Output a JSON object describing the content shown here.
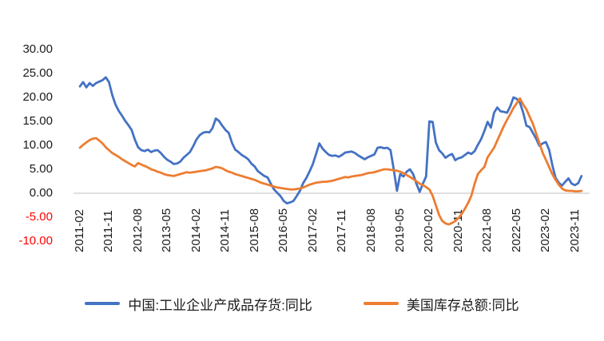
{
  "chart_data": {
    "type": "line",
    "title": "",
    "x_start": "2011-02",
    "x_frequency": "monthly",
    "x_tick_labels": [
      "2011-02",
      "2011-11",
      "2012-08",
      "2013-05",
      "2014-02",
      "2014-11",
      "2015-08",
      "2016-05",
      "2017-02",
      "2017-11",
      "2018-08",
      "2019-05",
      "2020-02",
      "2020-11",
      "2021-08",
      "2022-05",
      "2023-02",
      "2023-11"
    ],
    "x_tick_indices": [
      0,
      9,
      18,
      27,
      36,
      45,
      54,
      63,
      72,
      81,
      90,
      99,
      108,
      117,
      126,
      135,
      144,
      153
    ],
    "y_ticks": [
      30,
      25,
      20,
      15,
      10,
      5,
      0,
      -5,
      -10
    ],
    "y_tick_labels": [
      "30.00",
      "25.00",
      "20.00",
      "15.00",
      "10.00",
      "5.00",
      "0.00",
      "-5.00",
      "-10.00"
    ],
    "ylim": [
      -10,
      30
    ],
    "grid": "off",
    "axis_line_color": "#bfbfbf",
    "negative_tick_color": "#ff0000",
    "legend_position": "bottom",
    "series": [
      {
        "name": "中国:工业企业产成品存货:同比",
        "color": "#4472C4",
        "values": [
          22.3,
          23.2,
          22.1,
          23.0,
          22.4,
          23.0,
          23.3,
          23.6,
          24.2,
          23.2,
          20.5,
          18.5,
          17.2,
          16.2,
          15.1,
          14.2,
          13.2,
          11.2,
          9.6,
          9.0,
          8.8,
          9.1,
          8.6,
          8.9,
          9.0,
          8.4,
          7.6,
          7.0,
          6.6,
          6.1,
          6.2,
          6.6,
          7.4,
          8.0,
          8.6,
          9.8,
          11.2,
          12.1,
          12.6,
          12.8,
          12.7,
          13.6,
          15.6,
          15.1,
          14.1,
          13.2,
          12.6,
          10.5,
          9.1,
          8.6,
          8.0,
          7.6,
          7.1,
          6.2,
          5.6,
          4.6,
          4.1,
          3.6,
          3.3,
          2.0,
          0.8,
          0.1,
          -0.6,
          -1.6,
          -2.1,
          -1.9,
          -1.6,
          -0.6,
          0.5,
          2.1,
          3.2,
          4.6,
          6.1,
          8.2,
          10.4,
          9.3,
          8.6,
          8.0,
          7.8,
          7.9,
          7.6,
          8.0,
          8.5,
          8.6,
          8.7,
          8.4,
          7.9,
          7.5,
          7.1,
          7.5,
          7.8,
          8.1,
          9.5,
          9.6,
          9.4,
          9.5,
          9.0,
          5.0,
          0.5,
          4.0,
          3.5,
          4.5,
          5.0,
          4.0,
          2.0,
          0.3,
          2.0,
          3.5,
          15.0,
          14.9,
          10.6,
          9.0,
          8.3,
          7.4,
          7.9,
          8.2,
          6.9,
          7.3,
          7.5,
          8.0,
          8.5,
          8.2,
          8.8,
          10.1,
          11.3,
          13.0,
          14.9,
          13.7,
          16.8,
          17.9,
          17.1,
          17.0,
          16.8,
          18.1,
          20.0,
          19.7,
          18.9,
          16.8,
          14.1,
          13.8,
          12.6,
          11.4,
          9.9,
          10.4,
          10.7,
          9.1,
          5.9,
          3.2,
          2.2,
          1.6,
          2.4,
          3.1,
          2.0,
          1.7,
          2.1,
          3.6
        ]
      },
      {
        "name": "美国库存总额:同比",
        "color": "#ED7D31",
        "values": [
          9.5,
          10.1,
          10.6,
          11.1,
          11.4,
          11.5,
          11.0,
          10.4,
          9.6,
          9.0,
          8.4,
          8.0,
          7.6,
          7.1,
          6.7,
          6.3,
          5.9,
          5.6,
          6.3,
          6.0,
          5.7,
          5.4,
          5.0,
          4.8,
          4.5,
          4.3,
          4.0,
          3.8,
          3.7,
          3.6,
          3.8,
          4.0,
          4.2,
          4.4,
          4.3,
          4.4,
          4.5,
          4.6,
          4.7,
          4.8,
          5.0,
          5.2,
          5.5,
          5.4,
          5.2,
          4.8,
          4.5,
          4.3,
          4.0,
          3.8,
          3.6,
          3.4,
          3.2,
          3.0,
          2.8,
          2.5,
          2.2,
          2.0,
          1.8,
          1.6,
          1.4,
          1.2,
          1.1,
          1.0,
          0.9,
          0.8,
          0.8,
          0.9,
          1.0,
          1.2,
          1.5,
          1.8,
          2.0,
          2.2,
          2.3,
          2.4,
          2.4,
          2.5,
          2.6,
          2.8,
          3.0,
          3.2,
          3.4,
          3.3,
          3.5,
          3.6,
          3.7,
          3.8,
          4.0,
          4.2,
          4.3,
          4.4,
          4.6,
          4.8,
          5.0,
          5.0,
          4.9,
          4.8,
          4.7,
          4.5,
          4.2,
          3.8,
          3.4,
          3.0,
          2.5,
          2.0,
          1.7,
          1.3,
          0.8,
          -0.5,
          -2.5,
          -4.5,
          -5.8,
          -6.3,
          -6.5,
          -6.2,
          -5.8,
          -5.2,
          -4.3,
          -3.2,
          -2.0,
          -0.5,
          2.0,
          4.0,
          4.8,
          5.5,
          7.5,
          8.5,
          9.5,
          11.0,
          12.5,
          14.0,
          15.3,
          16.5,
          17.8,
          18.8,
          19.8,
          18.5,
          17.5,
          16.0,
          14.5,
          12.5,
          10.5,
          8.5,
          7.0,
          5.5,
          4.0,
          2.8,
          1.8,
          1.0,
          0.6,
          0.5,
          0.5,
          0.4,
          0.4,
          0.5
        ]
      }
    ]
  }
}
